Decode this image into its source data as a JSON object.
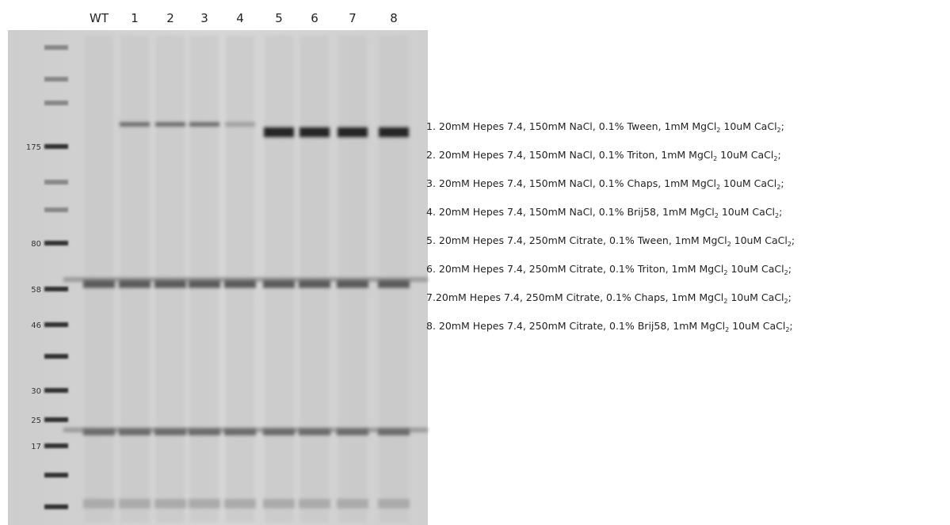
{
  "lanes": [
    "WT",
    "1",
    "2",
    "3",
    "4",
    "5",
    "6",
    "7",
    "8"
  ],
  "markers": [
    "175",
    "80",
    "58",
    "46",
    "30",
    "25",
    "17"
  ],
  "legend": [
    {
      "parts": [
        "1. 20mM Hepes 7.4, 150mM NaCl, 0.1% Tween, 1mM MgCl",
        "2",
        " 10uM CaCl",
        "2",
        ";"
      ]
    },
    {
      "parts": [
        "2. 20mM Hepes 7.4, 150mM NaCl, 0.1% Triton, 1mM MgCl",
        "2",
        " 10uM CaCl",
        "2",
        ";"
      ]
    },
    {
      "parts": [
        "3. 20mM Hepes 7.4, 150mM NaCl, 0.1% Chaps, 1mM MgCl",
        "2",
        " 10uM CaCl",
        "2",
        ";"
      ]
    },
    {
      "parts": [
        "4. 20mM Hepes 7.4, 150mM NaCl, 0.1% Brij58, 1mM MgCl",
        "2",
        " 10uM CaCl",
        "2",
        ";"
      ]
    },
    {
      "parts": [
        "5. 20mM Hepes 7.4, 250mM Citrate, 0.1% Tween, 1mM MgCl",
        "2",
        " 10uM CaCl",
        "2",
        ";"
      ]
    },
    {
      "parts": [
        "6. 20mM Hepes 7.4, 250mM Citrate, 0.1% Triton, 1mM MgCl",
        "2",
        " 10uM CaCl",
        "2",
        ";"
      ]
    },
    {
      "parts": [
        "7.20mM Hepes 7.4, 250mM Citrate, 0.1% Chaps, 1mM MgCl",
        "2",
        " 10uM CaCl",
        "2",
        ";"
      ]
    },
    {
      "parts": [
        "8. 20mM Hepes 7.4, 250mM Citrate, 0.1% Brij58, 1mM MgCl",
        "2",
        " 10uM CaCl",
        "2",
        ";"
      ]
    }
  ]
}
